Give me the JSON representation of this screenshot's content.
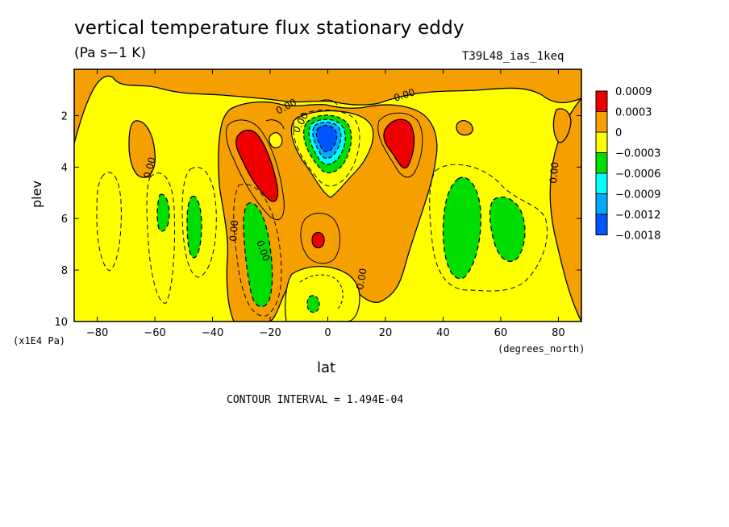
{
  "chart_data": {
    "type": "heatmap",
    "title": "vertical temperature flux stationary eddy",
    "units": "(Pa s−1 K)",
    "run_label": "T39L48_ias_1keq",
    "xlabel": "lat",
    "ylabel": "plev",
    "x_units": "(degrees_north)",
    "y_units": "(x1E4 Pa)",
    "xlim": [
      -88,
      88
    ],
    "ylim": [
      10,
      0.2
    ],
    "x_ticks": [
      "−80",
      "−60",
      "−40",
      "−20",
      "0",
      "20",
      "40",
      "60",
      "80"
    ],
    "x_tick_values": [
      -80,
      -60,
      -40,
      -20,
      0,
      20,
      40,
      60,
      80
    ],
    "y_ticks": [
      "2",
      "4",
      "6",
      "8",
      "10"
    ],
    "y_tick_values": [
      2,
      4,
      6,
      8,
      10
    ],
    "contour_interval_text": "CONTOUR INTERVAL = 1.494E-04",
    "contour_labels": [
      "0.00",
      "0.00",
      "0.00",
      "0.00",
      "0.00",
      "0.00",
      "0.00",
      "0.00"
    ],
    "legend": {
      "labels": [
        "0.0009",
        "0.0003",
        "0",
        "−0.0003",
        "−0.0006",
        "−0.0009",
        "−0.0012",
        "−0.0018"
      ],
      "colors": [
        "#ee0000",
        "#f5a000",
        "#ffff00",
        "#00dd00",
        "#00ffff",
        "#00aaff",
        "#0055ff"
      ]
    }
  }
}
